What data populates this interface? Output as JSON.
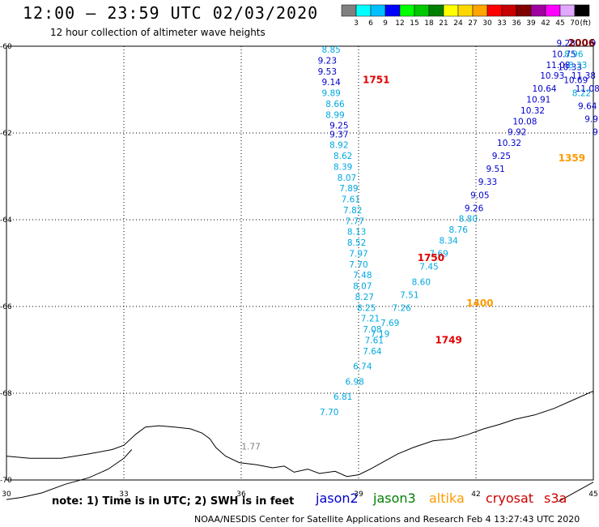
{
  "header": {
    "title": "12:00 – 23:59 UTC 02/03/2020",
    "subtitle": "12 hour collection of altimeter wave heights"
  },
  "colorbar": {
    "labels": [
      "3",
      "6",
      "9",
      "12",
      "15",
      "18",
      "21",
      "24",
      "27",
      "30",
      "33",
      "36",
      "39",
      "42",
      "45",
      "70"
    ],
    "unit": "(ft)",
    "colors": [
      "#808080",
      "#00ffff",
      "#00bfff",
      "#0000ff",
      "#00ff00",
      "#00c800",
      "#008000",
      "#ffff00",
      "#ffd700",
      "#ffa500",
      "#ff0000",
      "#c80000",
      "#800000",
      "#a000a0",
      "#ff00ff",
      "#e0a8ff",
      "#000000"
    ]
  },
  "footer": {
    "note": "note:  1) Time is in UTC;  2) SWH is in feet",
    "satellites": [
      {
        "name": "jason2",
        "color": "#0000cc"
      },
      {
        "name": "jason3",
        "color": "#008000"
      },
      {
        "name": "altika",
        "color": "#ff9900"
      },
      {
        "name": "cryosat",
        "color": "#cc0000"
      },
      {
        "name": "s3a",
        "color": "#cc0000"
      }
    ],
    "credit": "NOAA/NESDIS Center for Satellite Applications and Research    Feb  4 13:27:43 UTC 2020"
  },
  "chart_data": {
    "type": "scatter",
    "xlim": [
      30,
      45
    ],
    "ylim": [
      -70,
      -60
    ],
    "x_ticks": [
      30,
      33,
      36,
      39,
      42,
      45
    ],
    "y_ticks": [
      -60,
      -62,
      -64,
      -66,
      -68,
      -70
    ],
    "grid": true,
    "colors": {
      "light": "#00a8e0",
      "dark": "#0000cc",
      "gray": "#808080",
      "red": "#e00000",
      "orange": "#ff9900",
      "dark_red": "#800000"
    },
    "points": [
      {
        "x": 38.3,
        "y": -60.15,
        "v": "8.85",
        "c": "light"
      },
      {
        "x": 38.2,
        "y": -60.4,
        "v": "9.23",
        "c": "dark"
      },
      {
        "x": 38.2,
        "y": -60.65,
        "v": "9.53",
        "c": "dark"
      },
      {
        "x": 38.3,
        "y": -60.9,
        "v": "9.14",
        "c": "dark"
      },
      {
        "x": 38.3,
        "y": -61.15,
        "v": "9.89",
        "c": "light"
      },
      {
        "x": 38.4,
        "y": -61.4,
        "v": "8.66",
        "c": "light"
      },
      {
        "x": 38.4,
        "y": -61.65,
        "v": "8.99",
        "c": "light"
      },
      {
        "x": 38.5,
        "y": -61.9,
        "v": "9.25",
        "c": "dark"
      },
      {
        "x": 38.5,
        "y": -62.1,
        "v": "9.37",
        "c": "dark"
      },
      {
        "x": 38.5,
        "y": -62.35,
        "v": "8.92",
        "c": "light"
      },
      {
        "x": 38.6,
        "y": -62.6,
        "v": "8.62",
        "c": "light"
      },
      {
        "x": 38.6,
        "y": -62.85,
        "v": "8.39",
        "c": "light"
      },
      {
        "x": 38.7,
        "y": -63.1,
        "v": "8.07",
        "c": "light"
      },
      {
        "x": 38.75,
        "y": -63.35,
        "v": "7.89",
        "c": "light"
      },
      {
        "x": 38.8,
        "y": -63.6,
        "v": "7.61",
        "c": "light"
      },
      {
        "x": 38.85,
        "y": -63.85,
        "v": "7.82",
        "c": "light"
      },
      {
        "x": 38.9,
        "y": -64.1,
        "v": "7.77",
        "c": "light"
      },
      {
        "x": 38.95,
        "y": -64.35,
        "v": "8.13",
        "c": "light"
      },
      {
        "x": 38.95,
        "y": -64.6,
        "v": "8.52",
        "c": "light"
      },
      {
        "x": 39.0,
        "y": -64.85,
        "v": "7.97",
        "c": "light"
      },
      {
        "x": 39.0,
        "y": -65.1,
        "v": "7.70",
        "c": "light"
      },
      {
        "x": 39.1,
        "y": -65.35,
        "v": "7.48",
        "c": "light"
      },
      {
        "x": 39.1,
        "y": -65.6,
        "v": "8.07",
        "c": "light"
      },
      {
        "x": 39.15,
        "y": -65.85,
        "v": "8.27",
        "c": "light"
      },
      {
        "x": 39.2,
        "y": -66.1,
        "v": "8.25",
        "c": "light"
      },
      {
        "x": 39.3,
        "y": -66.35,
        "v": "7.21",
        "c": "light"
      },
      {
        "x": 39.35,
        "y": -66.6,
        "v": "7.08",
        "c": "light"
      },
      {
        "x": 39.4,
        "y": -66.85,
        "v": "7.61",
        "c": "light"
      },
      {
        "x": 39.35,
        "y": -67.1,
        "v": "7.64",
        "c": "light"
      },
      {
        "x": 39.1,
        "y": -67.45,
        "v": "6.74",
        "c": "light"
      },
      {
        "x": 38.9,
        "y": -67.8,
        "v": "6.98",
        "c": "light"
      },
      {
        "x": 38.6,
        "y": -68.15,
        "v": "6.81",
        "c": "light"
      },
      {
        "x": 38.25,
        "y": -68.5,
        "v": "7.70",
        "c": "light"
      },
      {
        "x": 39.55,
        "y": -66.7,
        "v": "7.19",
        "c": "light"
      },
      {
        "x": 39.8,
        "y": -66.45,
        "v": "7.69",
        "c": "light"
      },
      {
        "x": 40.1,
        "y": -66.1,
        "v": "7.26",
        "c": "light"
      },
      {
        "x": 40.3,
        "y": -65.8,
        "v": "7.51",
        "c": "light"
      },
      {
        "x": 40.6,
        "y": -65.5,
        "v": "8.60",
        "c": "light"
      },
      {
        "x": 40.8,
        "y": -65.15,
        "v": "7.45",
        "c": "light"
      },
      {
        "x": 41.05,
        "y": -64.85,
        "v": "7.69",
        "c": "light"
      },
      {
        "x": 41.3,
        "y": -64.55,
        "v": "8.34",
        "c": "light"
      },
      {
        "x": 41.55,
        "y": -64.3,
        "v": "8.76",
        "c": "light"
      },
      {
        "x": 41.8,
        "y": -64.05,
        "v": "8.80",
        "c": "light"
      },
      {
        "x": 41.95,
        "y": -63.8,
        "v": "9.26",
        "c": "dark"
      },
      {
        "x": 42.1,
        "y": -63.5,
        "v": "9.05",
        "c": "dark"
      },
      {
        "x": 42.3,
        "y": -63.2,
        "v": "9.33",
        "c": "dark"
      },
      {
        "x": 42.5,
        "y": -62.9,
        "v": "9.51",
        "c": "dark"
      },
      {
        "x": 42.65,
        "y": -62.6,
        "v": "9.25",
        "c": "dark"
      },
      {
        "x": 42.85,
        "y": -62.3,
        "v": "10.32",
        "c": "dark"
      },
      {
        "x": 43.05,
        "y": -62.05,
        "v": "9.92",
        "c": "dark"
      },
      {
        "x": 43.25,
        "y": -61.8,
        "v": "10.08",
        "c": "dark"
      },
      {
        "x": 43.45,
        "y": -61.55,
        "v": "10.32",
        "c": "dark"
      },
      {
        "x": 43.6,
        "y": -61.3,
        "v": "10.91",
        "c": "dark"
      },
      {
        "x": 43.75,
        "y": -61.05,
        "v": "10.64",
        "c": "dark"
      },
      {
        "x": 43.95,
        "y": -60.75,
        "v": "10.93",
        "c": "dark"
      },
      {
        "x": 44.1,
        "y": -60.5,
        "v": "11.08",
        "c": "dark"
      },
      {
        "x": 44.25,
        "y": -60.25,
        "v": "10.75",
        "c": "dark"
      },
      {
        "x": 44.4,
        "y": -60.55,
        "v": "10.33",
        "c": "dark"
      },
      {
        "x": 44.55,
        "y": -60.85,
        "v": "10.69",
        "c": "dark"
      },
      {
        "x": 44.7,
        "y": -61.15,
        "v": "8.22",
        "c": "light"
      },
      {
        "x": 44.85,
        "y": -61.45,
        "v": "9.64",
        "c": "dark"
      },
      {
        "x": 44.95,
        "y": -61.75,
        "v": "9.9",
        "c": "dark"
      },
      {
        "x": 45.05,
        "y": -62.05,
        "v": "9",
        "c": "dark"
      },
      {
        "x": 44.3,
        "y": -60.0,
        "v": "9.28",
        "c": "dark"
      },
      {
        "x": 44.5,
        "y": -60.25,
        "v": "8.96",
        "c": "light"
      },
      {
        "x": 44.6,
        "y": -60.5,
        "v": "8.33",
        "c": "light"
      },
      {
        "x": 44.75,
        "y": -60.75,
        "v": "11.38",
        "c": "dark"
      },
      {
        "x": 44.85,
        "y": -61.05,
        "v": "11.08",
        "c": "dark"
      },
      {
        "x": 45.0,
        "y": -60.0,
        "v": "9",
        "c": "dark"
      },
      {
        "x": 36.25,
        "y": -69.3,
        "v": "1.77",
        "c": "gray"
      }
    ],
    "times": [
      {
        "x": 39.45,
        "y": -60.85,
        "t": "1751",
        "c": "red"
      },
      {
        "x": 40.85,
        "y": -64.95,
        "t": "1750",
        "c": "red"
      },
      {
        "x": 41.3,
        "y": -66.85,
        "t": "1749",
        "c": "red"
      },
      {
        "x": 42.1,
        "y": -66.0,
        "t": "1400",
        "c": "orange"
      },
      {
        "x": 44.45,
        "y": -62.65,
        "t": "1359",
        "c": "orange"
      },
      {
        "x": 44.7,
        "y": -60.0,
        "t": "2006",
        "c": "dark_red"
      }
    ],
    "coastline": [
      [
        30.0,
        -69.45
      ],
      [
        30.6,
        -69.5
      ],
      [
        31.4,
        -69.5
      ],
      [
        32.1,
        -69.4
      ],
      [
        32.7,
        -69.3
      ],
      [
        33.0,
        -69.2
      ],
      [
        33.3,
        -68.95
      ],
      [
        33.55,
        -68.78
      ],
      [
        33.9,
        -68.75
      ],
      [
        34.3,
        -68.78
      ],
      [
        34.7,
        -68.82
      ],
      [
        35.0,
        -68.92
      ],
      [
        35.2,
        -69.05
      ],
      [
        35.35,
        -69.25
      ],
      [
        35.6,
        -69.45
      ],
      [
        35.95,
        -69.6
      ],
      [
        36.4,
        -69.65
      ],
      [
        36.8,
        -69.72
      ],
      [
        37.1,
        -69.68
      ],
      [
        37.35,
        -69.82
      ],
      [
        37.7,
        -69.75
      ],
      [
        38.0,
        -69.85
      ],
      [
        38.4,
        -69.8
      ],
      [
        38.7,
        -69.92
      ],
      [
        39.0,
        -69.88
      ],
      [
        39.3,
        -69.75
      ],
      [
        39.6,
        -69.6
      ],
      [
        40.0,
        -69.4
      ],
      [
        40.4,
        -69.25
      ],
      [
        40.9,
        -69.1
      ],
      [
        41.4,
        -69.05
      ],
      [
        41.8,
        -68.95
      ],
      [
        42.2,
        -68.82
      ],
      [
        42.6,
        -68.72
      ],
      [
        43.0,
        -68.6
      ],
      [
        43.5,
        -68.5
      ],
      [
        44.0,
        -68.35
      ],
      [
        44.5,
        -68.15
      ],
      [
        45.0,
        -67.95
      ]
    ],
    "coastline_west": [
      [
        30.0,
        -70.45
      ],
      [
        30.4,
        -70.4
      ],
      [
        30.9,
        -70.3
      ],
      [
        31.5,
        -70.1
      ],
      [
        32.1,
        -69.95
      ],
      [
        32.6,
        -69.75
      ],
      [
        33.0,
        -69.5
      ],
      [
        33.2,
        -69.3
      ]
    ],
    "coastline_east": [
      [
        44.1,
        -70.5
      ],
      [
        44.4,
        -70.35
      ],
      [
        44.7,
        -70.2
      ],
      [
        45.0,
        -70.05
      ]
    ]
  }
}
